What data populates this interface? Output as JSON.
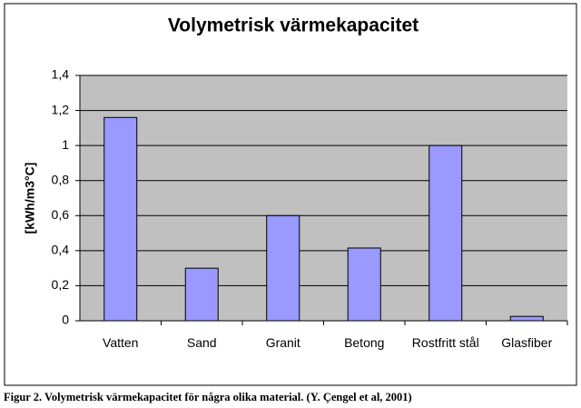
{
  "chart_data": {
    "type": "bar",
    "title": "Volymetrisk värmekapacitet",
    "y_label": "[kWh/m3°C]",
    "categories": [
      "Vatten",
      "Sand",
      "Granit",
      "Betong",
      "Rostfritt stål",
      "Glasfiber"
    ],
    "values": [
      1.16,
      0.3,
      0.6,
      0.415,
      1.0,
      0.025
    ],
    "color": "#9999ff",
    "ylim": [
      0,
      1.4
    ],
    "yticks": [
      0,
      {
        "value": 0.2,
        "label": "0,2"
      },
      {
        "value": 0.4,
        "label": "0,4"
      },
      {
        "value": 0.6,
        "label": "0,6"
      },
      {
        "value": 0.8,
        "label": "0,8"
      },
      1,
      {
        "value": 1.2,
        "label": "1,2"
      },
      {
        "value": 1.4,
        "label": "1,4"
      }
    ],
    "grid": true
  },
  "caption": "Figur 2. Volymetrisk värmekapacitet för några olika material. (Y. Çengel et al, 2001)"
}
